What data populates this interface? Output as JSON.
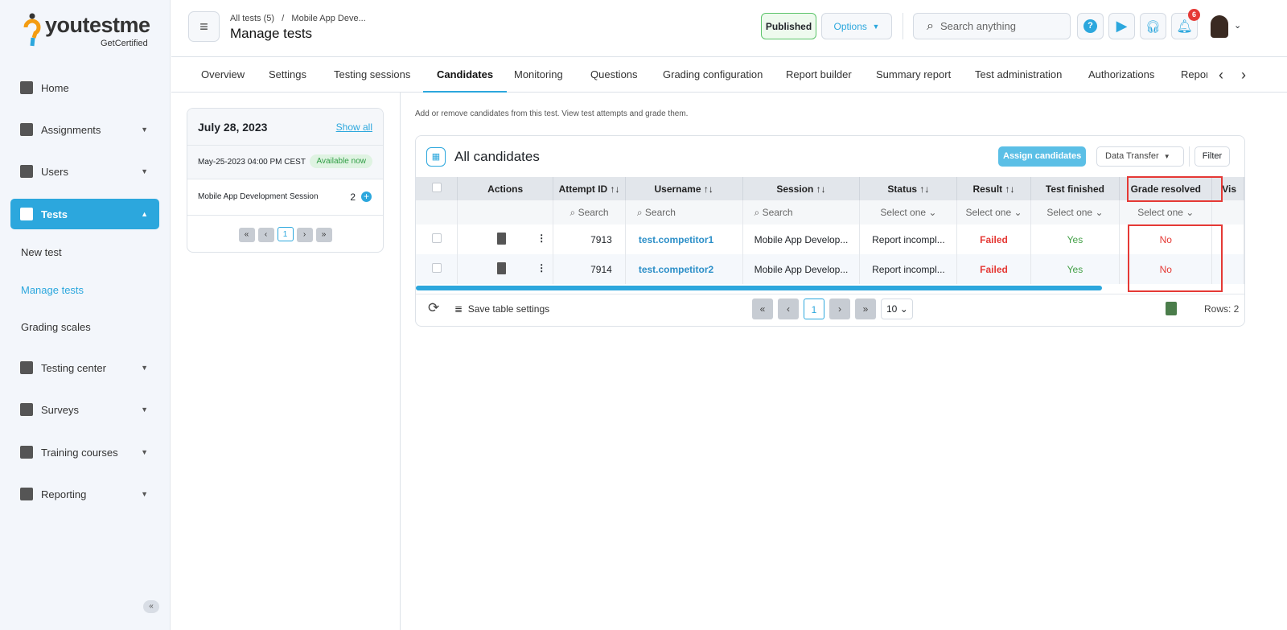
{
  "brand": {
    "name": "youtestme",
    "tagline": "GetCertified",
    "colors": {
      "accent": "#2ca7dd",
      "failed": "#e53935",
      "yes": "#43a047"
    }
  },
  "sidebar": {
    "items": [
      {
        "label": "Home",
        "icon": "home-icon",
        "chevron": false
      },
      {
        "label": "Assignments",
        "icon": "assignments-icon",
        "chevron": true
      },
      {
        "label": "Users",
        "icon": "users-icon",
        "chevron": true
      },
      {
        "label": "Tests",
        "icon": "tests-icon",
        "chevron": true,
        "active": true
      },
      {
        "label": "Testing center",
        "icon": "testing-center-icon",
        "chevron": true
      },
      {
        "label": "Surveys",
        "icon": "surveys-icon",
        "chevron": true
      },
      {
        "label": "Training courses",
        "icon": "trophy-icon",
        "chevron": true
      },
      {
        "label": "Reporting",
        "icon": "reporting-icon",
        "chevron": true
      }
    ],
    "sub_items": [
      "New test",
      "Manage tests",
      "Grading scales"
    ]
  },
  "header": {
    "breadcrumb": [
      "All tests (5)",
      "/",
      "Mobile App Deve..."
    ],
    "title": "Manage tests",
    "published": "Published",
    "options": "Options",
    "search_placeholder": "Search anything",
    "notifications": "6"
  },
  "tabs": [
    "Overview",
    "Settings",
    "Testing sessions",
    "Candidates",
    "Monitoring",
    "Questions",
    "Grading configuration",
    "Report builder",
    "Summary report",
    "Test administration",
    "Authorizations",
    "Repor"
  ],
  "sessions": {
    "date": "July 28, 2023",
    "show_all": "Show all",
    "datetime": "May-25-2023 04:00 PM CEST",
    "badge": "Available now",
    "session_name": "Mobile App Development Session",
    "count": "2",
    "page": "1"
  },
  "main": {
    "description": "Add or remove candidates from this test. View test attempts and grade them.",
    "table_title": "All candidates",
    "assign": "Assign candidates",
    "data_transfer": "Data Transfer",
    "filter": "Filter",
    "columns": [
      "Actions",
      "Attempt ID ↑↓",
      "Username ↑↓",
      "Session ↑↓",
      "Status ↑↓",
      "Result ↑↓",
      "Test finished",
      "Grade resolved",
      "Vis"
    ],
    "filters": [
      "",
      "Search",
      "Search",
      "Search",
      "Select one",
      "Select one",
      "Select one",
      "Select one"
    ],
    "rows": [
      {
        "attempt": "7913",
        "username": "test.competitor1",
        "session": "Mobile App Develop...",
        "status": "Report incompl...",
        "result": "Failed",
        "finished": "Yes",
        "grade": "No"
      },
      {
        "attempt": "7914",
        "username": "test.competitor2",
        "session": "Mobile App Develop...",
        "status": "Report incompl...",
        "result": "Failed",
        "finished": "Yes",
        "grade": "No"
      }
    ],
    "save_settings": "Save table settings",
    "page": "1",
    "page_size": "10",
    "rows_count": "Rows: 2"
  }
}
